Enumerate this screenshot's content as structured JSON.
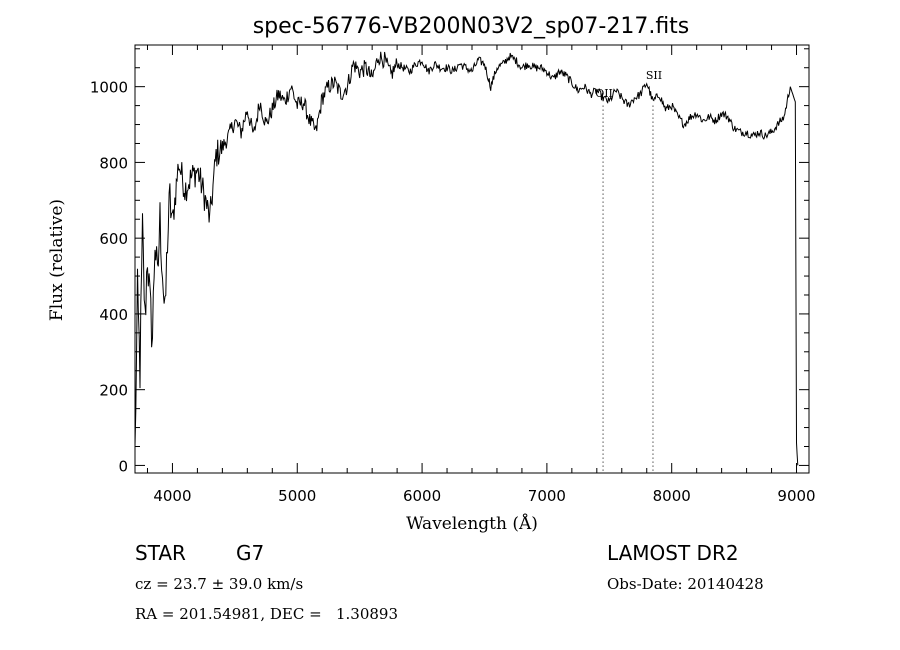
{
  "chart_data": {
    "type": "line",
    "title": "spec-56776-VB200N03V2_sp07-217.fits",
    "xlabel": "Wavelength (Å)",
    "ylabel": "Flux (relative)",
    "xlim": [
      3700,
      9100
    ],
    "ylim": [
      -20,
      1110
    ],
    "xticks": [
      4000,
      5000,
      6000,
      7000,
      8000,
      9000
    ],
    "xtick_labels": [
      "4000",
      "5000",
      "6000",
      "7000",
      "8000",
      "9000"
    ],
    "yticks": [
      0,
      200,
      400,
      600,
      800,
      1000
    ],
    "ytick_labels": [
      "0",
      "200",
      "400",
      "600",
      "800",
      "1000"
    ],
    "grid": false,
    "line_color": "#000000",
    "series": [
      {
        "x": [
          3700,
          3720,
          3740,
          3760,
          3780,
          3800,
          3820,
          3840,
          3860,
          3880,
          3900,
          3920,
          3940,
          3960,
          3980,
          4000,
          4050,
          4100,
          4150,
          4200,
          4250,
          4300,
          4350,
          4400,
          4450,
          4500,
          4550,
          4600,
          4650,
          4700,
          4750,
          4800,
          4850,
          4900,
          4950,
          5000,
          5050,
          5100,
          5150,
          5200,
          5250,
          5300,
          5350,
          5400,
          5450,
          5500,
          5550,
          5600,
          5650,
          5700,
          5750,
          5800,
          5850,
          5900,
          5950,
          6000,
          6050,
          6100,
          6150,
          6200,
          6250,
          6300,
          6350,
          6400,
          6450,
          6500,
          6550,
          6600,
          6650,
          6700,
          6750,
          6800,
          6850,
          6900,
          6950,
          7000,
          7050,
          7100,
          7150,
          7200,
          7250,
          7300,
          7350,
          7400,
          7450,
          7500,
          7550,
          7600,
          7650,
          7700,
          7750,
          7800,
          7850,
          7900,
          7950,
          8000,
          8050,
          8100,
          8150,
          8200,
          8250,
          8300,
          8350,
          8400,
          8450,
          8500,
          8550,
          8600,
          8650,
          8700,
          8750,
          8800,
          8850,
          8900,
          8950,
          8970,
          8990,
          9000,
          9010
        ],
        "y": [
          30,
          450,
          250,
          620,
          380,
          560,
          420,
          340,
          600,
          480,
          650,
          520,
          380,
          600,
          700,
          640,
          800,
          730,
          760,
          780,
          720,
          650,
          820,
          840,
          870,
          910,
          880,
          940,
          870,
          960,
          900,
          940,
          980,
          960,
          1000,
          950,
          960,
          910,
          880,
          970,
          1000,
          1010,
          980,
          1000,
          1060,
          1040,
          1050,
          1020,
          1080,
          1070,
          1030,
          1060,
          1050,
          1040,
          1060,
          1070,
          1040,
          1060,
          1050,
          1050,
          1040,
          1060,
          1050,
          1040,
          1070,
          1060,
          1000,
          1050,
          1060,
          1080,
          1070,
          1050,
          1060,
          1050,
          1050,
          1040,
          1020,
          1040,
          1030,
          1010,
          990,
          1000,
          980,
          990,
          970,
          960,
          990,
          970,
          950,
          970,
          980,
          1010,
          960,
          980,
          940,
          950,
          920,
          900,
          920,
          930,
          910,
          920,
          910,
          930,
          920,
          890,
          880,
          880,
          870,
          880,
          870,
          880,
          900,
          920,
          1000,
          980,
          960,
          60,
          0
        ]
      }
    ],
    "annotations": [
      {
        "text": "OII",
        "x": 7450
      },
      {
        "text": "SII",
        "x": 7850
      }
    ],
    "marker_lines_x": [
      7450,
      7850
    ]
  },
  "info": {
    "object_type": "STAR",
    "subclass": "G7",
    "survey": "LAMOST DR2",
    "redshift": "cz = 23.7 ± 39.0 km/s",
    "obs_date": "Obs-Date: 20140428",
    "coords": "RA = 201.54981, DEC =   1.30893"
  }
}
